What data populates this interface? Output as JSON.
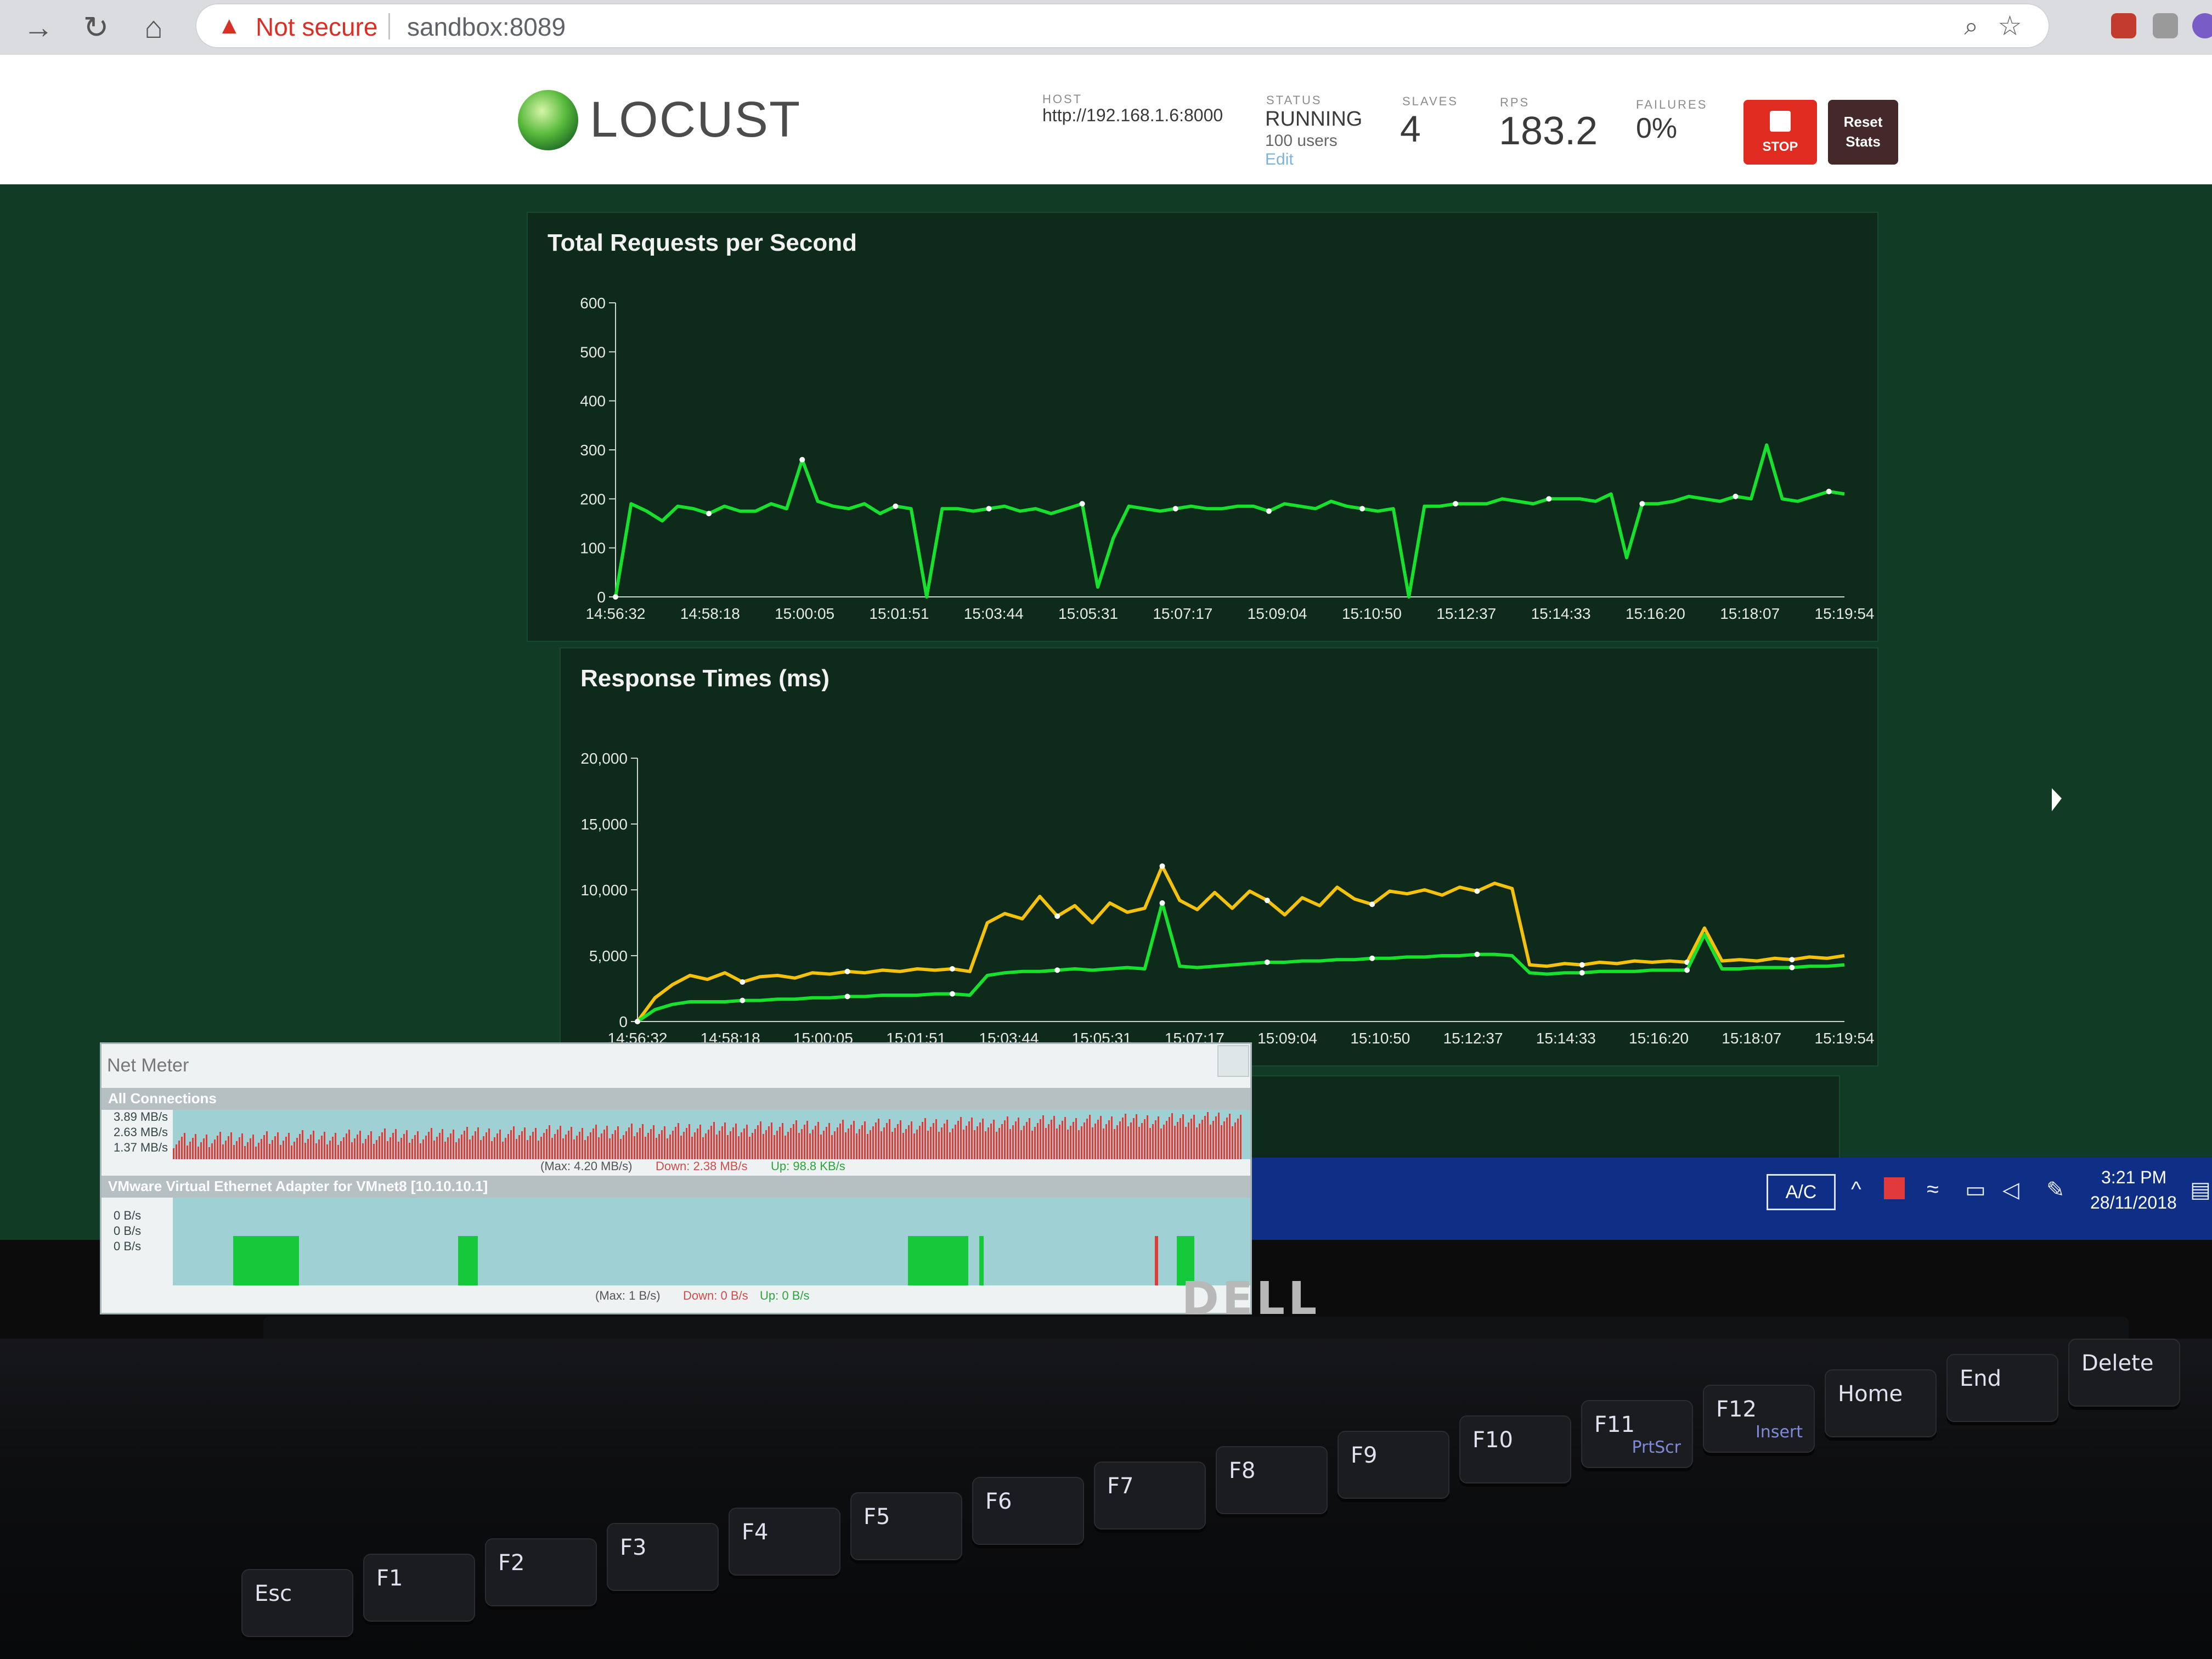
{
  "browser": {
    "security_label": "Not secure",
    "url": "sandbox:8089"
  },
  "locust": {
    "logo_text": "LOCUST",
    "host_label": "HOST",
    "host_value": "http://192.168.1.6:8000",
    "status_label": "STATUS",
    "status_value": "RUNNING",
    "users_value": "100 users",
    "edit_label": "Edit",
    "slaves_label": "SLAVES",
    "slaves_value": "4",
    "rps_label": "RPS",
    "rps_value": "183.2",
    "failures_label": "FAILURES",
    "failures_value": "0%",
    "stop_label": "STOP",
    "reset_label_1": "Reset",
    "reset_label_2": "Stats"
  },
  "chart_data": [
    {
      "type": "line",
      "title": "Total Requests per Second",
      "x_labels": [
        "14:56:32",
        "14:58:18",
        "15:00:05",
        "15:01:51",
        "15:03:44",
        "15:05:31",
        "15:07:17",
        "15:09:04",
        "15:10:50",
        "15:12:37",
        "15:14:33",
        "15:16:20",
        "15:18:07",
        "15:19:54"
      ],
      "y_ticks": [
        0,
        100,
        200,
        300,
        400,
        500,
        600
      ],
      "ylim": [
        0,
        600
      ],
      "colors": {
        "RPS": "#18e02e"
      },
      "series": [
        {
          "name": "RPS",
          "values": [
            0,
            190,
            175,
            155,
            185,
            180,
            170,
            185,
            175,
            175,
            190,
            180,
            280,
            195,
            185,
            180,
            190,
            170,
            185,
            180,
            0,
            180,
            180,
            175,
            180,
            185,
            175,
            180,
            170,
            180,
            190,
            20,
            120,
            185,
            180,
            175,
            180,
            185,
            180,
            180,
            185,
            185,
            175,
            190,
            185,
            180,
            195,
            185,
            180,
            175,
            180,
            0,
            185,
            185,
            190,
            190,
            190,
            200,
            195,
            190,
            200,
            200,
            200,
            195,
            210,
            80,
            190,
            190,
            195,
            205,
            200,
            195,
            205,
            200,
            310,
            200,
            195,
            205,
            215,
            210
          ]
        }
      ]
    },
    {
      "type": "line",
      "title": "Response Times (ms)",
      "x_labels": [
        "14:56:32",
        "14:58:18",
        "15:00:05",
        "15:01:51",
        "15:03:44",
        "15:05:31",
        "15:07:17",
        "15:09:04",
        "15:10:50",
        "15:12:37",
        "15:14:33",
        "15:16:20",
        "15:18:07",
        "15:19:54"
      ],
      "y_ticks": [
        "0",
        "5,000",
        "10,000",
        "15,000",
        "20,000"
      ],
      "ylim": [
        0,
        20000
      ],
      "colors": {
        "Median": "#18e02e",
        "95%": "#f4c20d"
      },
      "series": [
        {
          "name": "Median",
          "values": [
            0,
            900,
            1300,
            1500,
            1500,
            1500,
            1600,
            1600,
            1700,
            1700,
            1800,
            1800,
            1900,
            1900,
            2000,
            2000,
            2000,
            2100,
            2100,
            2000,
            3500,
            3700,
            3800,
            3800,
            3900,
            4000,
            3900,
            4000,
            4100,
            4000,
            9000,
            4200,
            4100,
            4200,
            4300,
            4400,
            4500,
            4500,
            4600,
            4600,
            4700,
            4700,
            4800,
            4800,
            4900,
            4900,
            5000,
            5000,
            5100,
            5100,
            5000,
            3700,
            3600,
            3700,
            3700,
            3800,
            3800,
            3800,
            3900,
            3900,
            3900,
            6600,
            4000,
            4000,
            4100,
            4100,
            4100,
            4200,
            4200,
            4300
          ]
        },
        {
          "name": "95%",
          "values": [
            0,
            1800,
            2800,
            3500,
            3200,
            3700,
            3000,
            3400,
            3500,
            3300,
            3700,
            3600,
            3800,
            3700,
            3900,
            3800,
            4000,
            3900,
            4000,
            3800,
            7500,
            8200,
            7800,
            9500,
            8000,
            8800,
            7500,
            9000,
            8300,
            8600,
            11800,
            9200,
            8500,
            9800,
            8600,
            9900,
            9200,
            8100,
            9400,
            8800,
            10200,
            9300,
            8900,
            9900,
            9700,
            10000,
            9600,
            10200,
            9900,
            10500,
            10100,
            4300,
            4200,
            4400,
            4300,
            4500,
            4400,
            4600,
            4500,
            4600,
            4500,
            7100,
            4600,
            4700,
            4600,
            4800,
            4700,
            4900,
            4800,
            5000
          ]
        }
      ]
    }
  ],
  "net_meter": {
    "title": "Net Meter",
    "section1_title": "All Connections",
    "section1_axis": [
      "3.89 MB/s",
      "2.63 MB/s",
      "1.37 MB/s"
    ],
    "section1_max": "(Max: 4.20 MB/s)",
    "section1_down": "Down: 2.38 MB/s",
    "section1_up": "Up: 98.8 KB/s",
    "section2_title": "VMware Virtual Ethernet Adapter for VMnet8 [10.10.10.1]",
    "section2_axis": [
      "0 B/s",
      "0 B/s",
      "0 B/s"
    ],
    "section2_max": "(Max: 1 B/s)",
    "section2_down": "Down: 0 B/s",
    "section2_up": "Up: 0 B/s"
  },
  "taskbar": {
    "layout_indicator": "A/C",
    "time": "3:21 PM",
    "date": "28/11/2018"
  },
  "device": {
    "brand": "DELL"
  },
  "keyboard": {
    "keys": [
      {
        "main": "Esc",
        "sub": ""
      },
      {
        "main": "F1",
        "sub": ""
      },
      {
        "main": "F2",
        "sub": ""
      },
      {
        "main": "F3",
        "sub": ""
      },
      {
        "main": "F4",
        "sub": ""
      },
      {
        "main": "F5",
        "sub": ""
      },
      {
        "main": "F6",
        "sub": ""
      },
      {
        "main": "F7",
        "sub": ""
      },
      {
        "main": "F8",
        "sub": ""
      },
      {
        "main": "F9",
        "sub": ""
      },
      {
        "main": "F10",
        "sub": ""
      },
      {
        "main": "F11",
        "sub": "PrtScr"
      },
      {
        "main": "F12",
        "sub": "Insert"
      },
      {
        "main": "Home",
        "sub": ""
      },
      {
        "main": "End",
        "sub": ""
      },
      {
        "main": "Delete",
        "sub": ""
      }
    ]
  }
}
